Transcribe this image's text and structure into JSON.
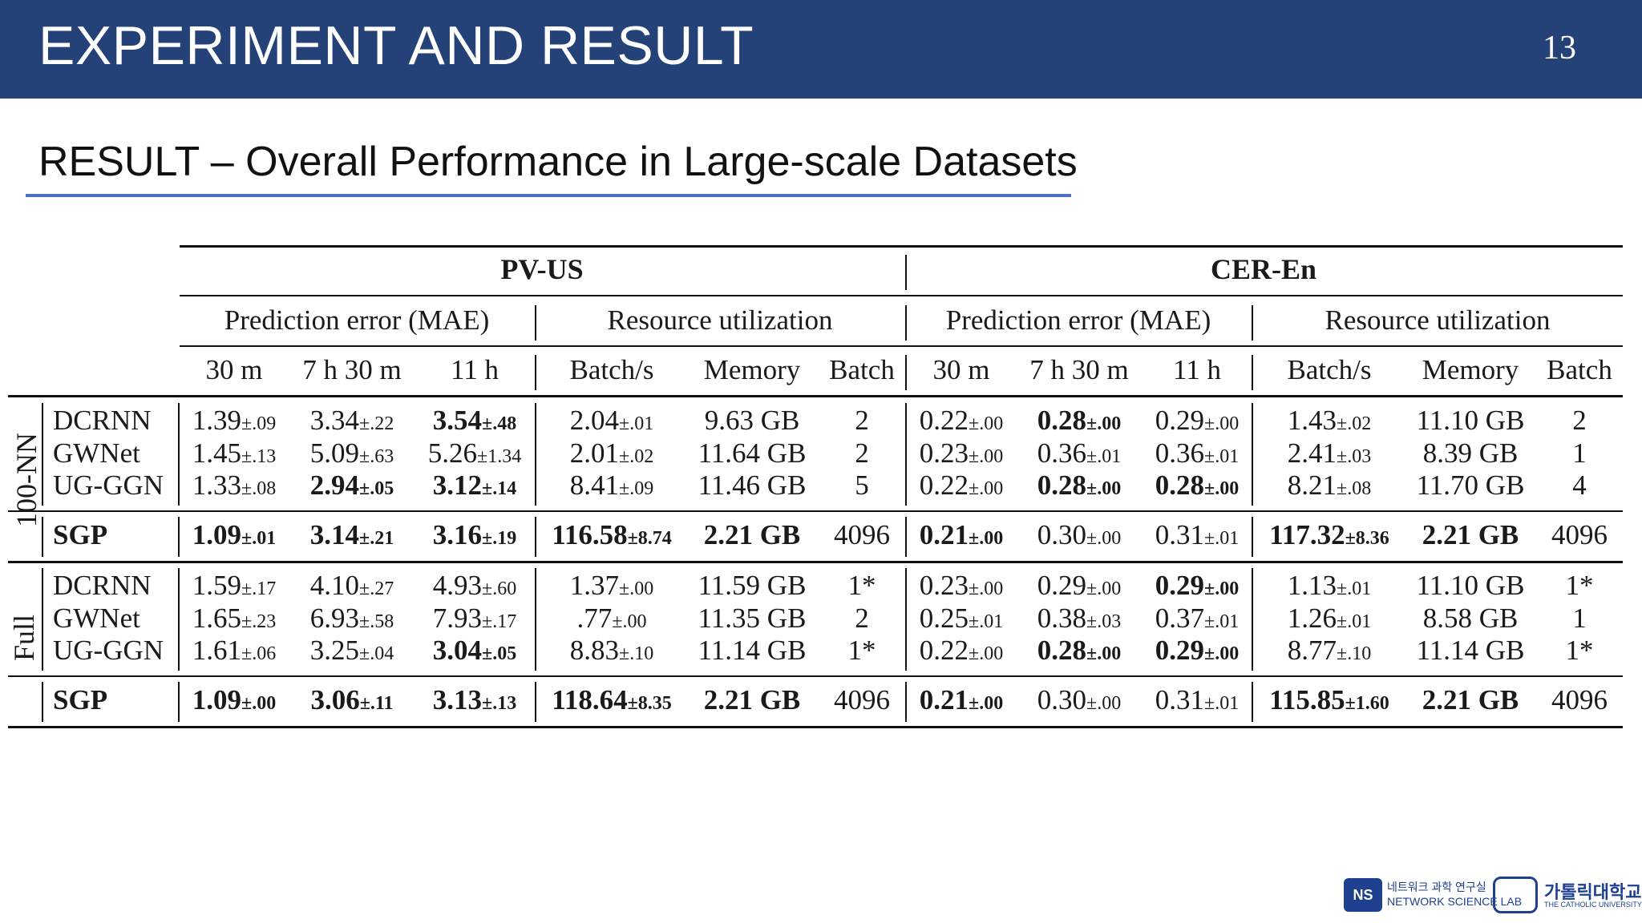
{
  "header": {
    "title": "EXPERIMENT AND RESULT",
    "page_number": "13"
  },
  "subtitle": "RESULT – Overall Performance in Large-scale Datasets",
  "table": {
    "datasets": [
      "PV-US",
      "CER-En"
    ],
    "subgroups": [
      "Prediction error (MAE)",
      "Resource utilization",
      "Prediction error (MAE)",
      "Resource utilization"
    ],
    "columns": [
      "30 m",
      "7 h 30 m",
      "11 h",
      "Batch/s",
      "Memory",
      "Batch",
      "30 m",
      "7 h 30 m",
      "11 h",
      "Batch/s",
      "Memory",
      "Batch"
    ],
    "groups": [
      "100-NN",
      "Full"
    ],
    "rows": [
      {
        "model": "DCRNN",
        "cells": [
          {
            "v": "1.39",
            "s": "±.09",
            "b": false
          },
          {
            "v": "3.34",
            "s": "±.22",
            "b": false
          },
          {
            "v": "3.54",
            "s": "±.48",
            "b": true
          },
          {
            "v": "2.04",
            "s": "±.01",
            "b": false
          },
          {
            "v": "9.63 GB",
            "s": "",
            "b": false
          },
          {
            "v": "2",
            "s": "",
            "b": false
          },
          {
            "v": "0.22",
            "s": "±.00",
            "b": false
          },
          {
            "v": "0.28",
            "s": "±.00",
            "b": true
          },
          {
            "v": "0.29",
            "s": "±.00",
            "b": false
          },
          {
            "v": "1.43",
            "s": "±.02",
            "b": false
          },
          {
            "v": "11.10 GB",
            "s": "",
            "b": false
          },
          {
            "v": "2",
            "s": "",
            "b": false
          }
        ]
      },
      {
        "model": "GWNet",
        "cells": [
          {
            "v": "1.45",
            "s": "±.13",
            "b": false
          },
          {
            "v": "5.09",
            "s": "±.63",
            "b": false
          },
          {
            "v": "5.26",
            "s": "±1.34",
            "b": false
          },
          {
            "v": "2.01",
            "s": "±.02",
            "b": false
          },
          {
            "v": "11.64 GB",
            "s": "",
            "b": false
          },
          {
            "v": "2",
            "s": "",
            "b": false
          },
          {
            "v": "0.23",
            "s": "±.00",
            "b": false
          },
          {
            "v": "0.36",
            "s": "±.01",
            "b": false
          },
          {
            "v": "0.36",
            "s": "±.01",
            "b": false
          },
          {
            "v": "2.41",
            "s": "±.03",
            "b": false
          },
          {
            "v": "8.39 GB",
            "s": "",
            "b": false
          },
          {
            "v": "1",
            "s": "",
            "b": false
          }
        ]
      },
      {
        "model": "UG-GGN",
        "cells": [
          {
            "v": "1.33",
            "s": "±.08",
            "b": false
          },
          {
            "v": "2.94",
            "s": "±.05",
            "b": true
          },
          {
            "v": "3.12",
            "s": "±.14",
            "b": true
          },
          {
            "v": "8.41",
            "s": "±.09",
            "b": false
          },
          {
            "v": "11.46 GB",
            "s": "",
            "b": false
          },
          {
            "v": "5",
            "s": "",
            "b": false
          },
          {
            "v": "0.22",
            "s": "±.00",
            "b": false
          },
          {
            "v": "0.28",
            "s": "±.00",
            "b": true
          },
          {
            "v": "0.28",
            "s": "±.00",
            "b": true
          },
          {
            "v": "8.21",
            "s": "±.08",
            "b": false
          },
          {
            "v": "11.70 GB",
            "s": "",
            "b": false
          },
          {
            "v": "4",
            "s": "",
            "b": false
          }
        ]
      },
      {
        "model": "SGP",
        "cells": [
          {
            "v": "1.09",
            "s": "±.01",
            "b": true
          },
          {
            "v": "3.14",
            "s": "±.21",
            "b": true
          },
          {
            "v": "3.16",
            "s": "±.19",
            "b": true
          },
          {
            "v": "116.58",
            "s": "±8.74",
            "b": true
          },
          {
            "v": "2.21 GB",
            "s": "",
            "b": true
          },
          {
            "v": "4096",
            "s": "",
            "b": false
          },
          {
            "v": "0.21",
            "s": "±.00",
            "b": true
          },
          {
            "v": "0.30",
            "s": "±.00",
            "b": false
          },
          {
            "v": "0.31",
            "s": "±.01",
            "b": false
          },
          {
            "v": "117.32",
            "s": "±8.36",
            "b": true
          },
          {
            "v": "2.21 GB",
            "s": "",
            "b": true
          },
          {
            "v": "4096",
            "s": "",
            "b": false
          }
        ]
      },
      {
        "model": "DCRNN",
        "cells": [
          {
            "v": "1.59",
            "s": "±.17",
            "b": false
          },
          {
            "v": "4.10",
            "s": "±.27",
            "b": false
          },
          {
            "v": "4.93",
            "s": "±.60",
            "b": false
          },
          {
            "v": "1.37",
            "s": "±.00",
            "b": false
          },
          {
            "v": "11.59 GB",
            "s": "",
            "b": false
          },
          {
            "v": "1*",
            "s": "",
            "b": false
          },
          {
            "v": "0.23",
            "s": "±.00",
            "b": false
          },
          {
            "v": "0.29",
            "s": "±.00",
            "b": false
          },
          {
            "v": "0.29",
            "s": "±.00",
            "b": true
          },
          {
            "v": "1.13",
            "s": "±.01",
            "b": false
          },
          {
            "v": "11.10 GB",
            "s": "",
            "b": false
          },
          {
            "v": "1*",
            "s": "",
            "b": false
          }
        ]
      },
      {
        "model": "GWNet",
        "cells": [
          {
            "v": "1.65",
            "s": "±.23",
            "b": false
          },
          {
            "v": "6.93",
            "s": "±.58",
            "b": false
          },
          {
            "v": "7.93",
            "s": "±.17",
            "b": false
          },
          {
            "v": ".77",
            "s": "±.00",
            "b": false
          },
          {
            "v": "11.35 GB",
            "s": "",
            "b": false
          },
          {
            "v": "2",
            "s": "",
            "b": false
          },
          {
            "v": "0.25",
            "s": "±.01",
            "b": false
          },
          {
            "v": "0.38",
            "s": "±.03",
            "b": false
          },
          {
            "v": "0.37",
            "s": "±.01",
            "b": false
          },
          {
            "v": "1.26",
            "s": "±.01",
            "b": false
          },
          {
            "v": "8.58 GB",
            "s": "",
            "b": false
          },
          {
            "v": "1",
            "s": "",
            "b": false
          }
        ]
      },
      {
        "model": "UG-GGN",
        "cells": [
          {
            "v": "1.61",
            "s": "±.06",
            "b": false
          },
          {
            "v": "3.25",
            "s": "±.04",
            "b": false
          },
          {
            "v": "3.04",
            "s": "±.05",
            "b": true
          },
          {
            "v": "8.83",
            "s": "±.10",
            "b": false
          },
          {
            "v": "11.14 GB",
            "s": "",
            "b": false
          },
          {
            "v": "1*",
            "s": "",
            "b": false
          },
          {
            "v": "0.22",
            "s": "±.00",
            "b": false
          },
          {
            "v": "0.28",
            "s": "±.00",
            "b": true
          },
          {
            "v": "0.29",
            "s": "±.00",
            "b": true
          },
          {
            "v": "8.77",
            "s": "±.10",
            "b": false
          },
          {
            "v": "11.14 GB",
            "s": "",
            "b": false
          },
          {
            "v": "1*",
            "s": "",
            "b": false
          }
        ]
      },
      {
        "model": "SGP",
        "cells": [
          {
            "v": "1.09",
            "s": "±.00",
            "b": true
          },
          {
            "v": "3.06",
            "s": "±.11",
            "b": true
          },
          {
            "v": "3.13",
            "s": "±.13",
            "b": true
          },
          {
            "v": "118.64",
            "s": "±8.35",
            "b": true
          },
          {
            "v": "2.21 GB",
            "s": "",
            "b": true
          },
          {
            "v": "4096",
            "s": "",
            "b": false
          },
          {
            "v": "0.21",
            "s": "±.00",
            "b": true
          },
          {
            "v": "0.30",
            "s": "±.00",
            "b": false
          },
          {
            "v": "0.31",
            "s": "±.01",
            "b": false
          },
          {
            "v": "115.85",
            "s": "±1.60",
            "b": true
          },
          {
            "v": "2.21 GB",
            "s": "",
            "b": true
          },
          {
            "v": "4096",
            "s": "",
            "b": false
          }
        ]
      }
    ]
  },
  "logos": {
    "ns_mark": "NS",
    "ns_korean": "네트워크 과학 연구실",
    "ns_english": "NETWORK SCIENCE LAB",
    "cuk_korean": "가톨릭대학교",
    "cuk_english": "THE CATHOLIC UNIVERSITY OF KOREA"
  },
  "colors": {
    "header_bg": "#254278",
    "subtitle_rule": "#4a72c4"
  }
}
